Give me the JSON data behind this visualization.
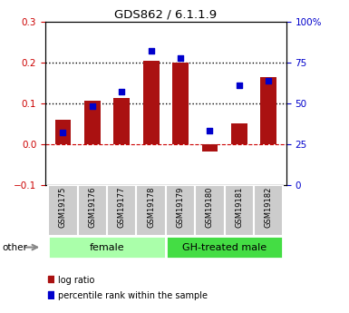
{
  "title": "GDS862 / 6.1.1.9",
  "samples": [
    "GSM19175",
    "GSM19176",
    "GSM19177",
    "GSM19178",
    "GSM19179",
    "GSM19180",
    "GSM19181",
    "GSM19182"
  ],
  "log_ratio": [
    0.06,
    0.107,
    0.113,
    0.205,
    0.2,
    -0.018,
    0.05,
    0.165
  ],
  "percentile_rank_pct": [
    32,
    48,
    57,
    82,
    78,
    33,
    61,
    64
  ],
  "left_ylim": [
    -0.1,
    0.3
  ],
  "right_ylim": [
    0,
    100
  ],
  "left_yticks": [
    -0.1,
    0.0,
    0.1,
    0.2,
    0.3
  ],
  "right_yticks": [
    0,
    25,
    50,
    75,
    100
  ],
  "bar_color": "#aa1111",
  "dot_color": "#0000cc",
  "groups": [
    {
      "label": "female",
      "start": 0,
      "end": 3,
      "color": "#aaffaa"
    },
    {
      "label": "GH-treated male",
      "start": 4,
      "end": 7,
      "color": "#44dd44"
    }
  ],
  "other_label": "other",
  "legend_bar_label": "log ratio",
  "legend_dot_label": "percentile rank within the sample",
  "background_color": "#ffffff",
  "tick_label_color_left": "#cc0000",
  "tick_label_color_right": "#0000cc"
}
